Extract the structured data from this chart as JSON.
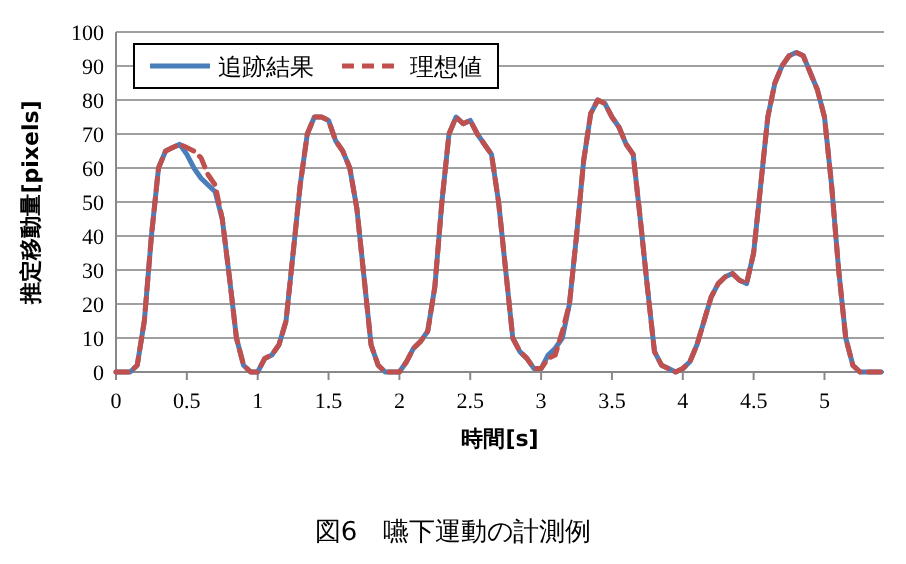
{
  "chart_data": {
    "type": "line",
    "xlabel": "時間[s]",
    "ylabel": "推定移動量[pixels]",
    "annotations": [
      "図6　嚥下運動の計測例"
    ],
    "x": [
      0,
      0.05,
      0.1,
      0.15,
      0.2,
      0.25,
      0.3,
      0.35,
      0.4,
      0.45,
      0.5,
      0.55,
      0.6,
      0.65,
      0.7,
      0.75,
      0.8,
      0.85,
      0.9,
      0.95,
      1,
      1.05,
      1.1,
      1.15,
      1.2,
      1.25,
      1.3,
      1.35,
      1.4,
      1.45,
      1.5,
      1.55,
      1.6,
      1.65,
      1.7,
      1.75,
      1.8,
      1.85,
      1.9,
      1.95,
      2,
      2.05,
      2.1,
      2.15,
      2.2,
      2.25,
      2.3,
      2.35,
      2.4,
      2.45,
      2.5,
      2.55,
      2.6,
      2.65,
      2.7,
      2.75,
      2.8,
      2.85,
      2.9,
      2.95,
      3,
      3.05,
      3.1,
      3.15,
      3.2,
      3.25,
      3.3,
      3.35,
      3.4,
      3.45,
      3.5,
      3.55,
      3.6,
      3.65,
      3.7,
      3.75,
      3.8,
      3.85,
      3.9,
      3.95,
      4,
      4.05,
      4.1,
      4.15,
      4.2,
      4.25,
      4.3,
      4.35,
      4.4,
      4.45,
      4.5,
      4.55,
      4.6,
      4.65,
      4.7,
      4.75,
      4.8,
      4.85,
      4.9,
      4.95,
      5,
      5.05,
      5.1,
      5.15,
      5.2,
      5.25,
      5.3,
      5.35,
      5.4
    ],
    "series": [
      {
        "name": "追跡結果",
        "color": "#4a7ebb",
        "line_style": "solid",
        "values": [
          0,
          0,
          0,
          2,
          15,
          40,
          60,
          65,
          66,
          67,
          64,
          60,
          57,
          55,
          53,
          45,
          28,
          10,
          2,
          0,
          0,
          4,
          5,
          8,
          15,
          35,
          55,
          70,
          75,
          75,
          74,
          68,
          65,
          60,
          48,
          28,
          8,
          2,
          0,
          0,
          0,
          3,
          7,
          9,
          12,
          25,
          50,
          70,
          75,
          73,
          74,
          70,
          67,
          64,
          50,
          30,
          10,
          6,
          4,
          1,
          1,
          5,
          7,
          10,
          20,
          40,
          62,
          76,
          80,
          79,
          75,
          72,
          67,
          64,
          45,
          25,
          6,
          2,
          1,
          0,
          1,
          3,
          8,
          15,
          22,
          26,
          28,
          29,
          27,
          26,
          35,
          55,
          75,
          85,
          90,
          93,
          94,
          93,
          88,
          83,
          75,
          55,
          30,
          10,
          2,
          0,
          0,
          0,
          0
        ]
      },
      {
        "name": "理想値",
        "color": "#c0504d",
        "line_style": "dashed",
        "values": [
          0,
          0,
          0,
          2,
          15,
          40,
          60,
          65,
          66,
          67,
          66,
          65,
          63,
          58,
          55,
          45,
          28,
          10,
          2,
          0,
          0,
          4,
          5,
          8,
          15,
          35,
          55,
          70,
          75,
          75,
          74,
          68,
          65,
          60,
          48,
          28,
          8,
          2,
          0,
          0,
          0,
          3,
          7,
          9,
          12,
          25,
          50,
          70,
          75,
          73,
          74,
          70,
          67,
          64,
          50,
          30,
          10,
          6,
          4,
          1,
          1,
          4,
          5,
          12,
          20,
          40,
          62,
          76,
          80,
          79,
          75,
          72,
          67,
          64,
          45,
          25,
          6,
          2,
          1,
          0,
          1,
          3,
          8,
          15,
          22,
          26,
          28,
          29,
          27,
          26,
          35,
          55,
          75,
          85,
          90,
          93,
          94,
          93,
          88,
          83,
          75,
          55,
          30,
          10,
          2,
          0,
          0,
          0,
          0
        ]
      }
    ],
    "xlim": [
      0,
      5.42
    ],
    "xticks": [
      0,
      0.5,
      1,
      1.5,
      2,
      2.5,
      3,
      3.5,
      4,
      4.5,
      5
    ],
    "ylim": [
      0,
      100
    ],
    "yticks": [
      0,
      10,
      20,
      30,
      40,
      50,
      60,
      70,
      80,
      90,
      100
    ],
    "grid": "y",
    "legend": "top left",
    "marker": "none"
  }
}
